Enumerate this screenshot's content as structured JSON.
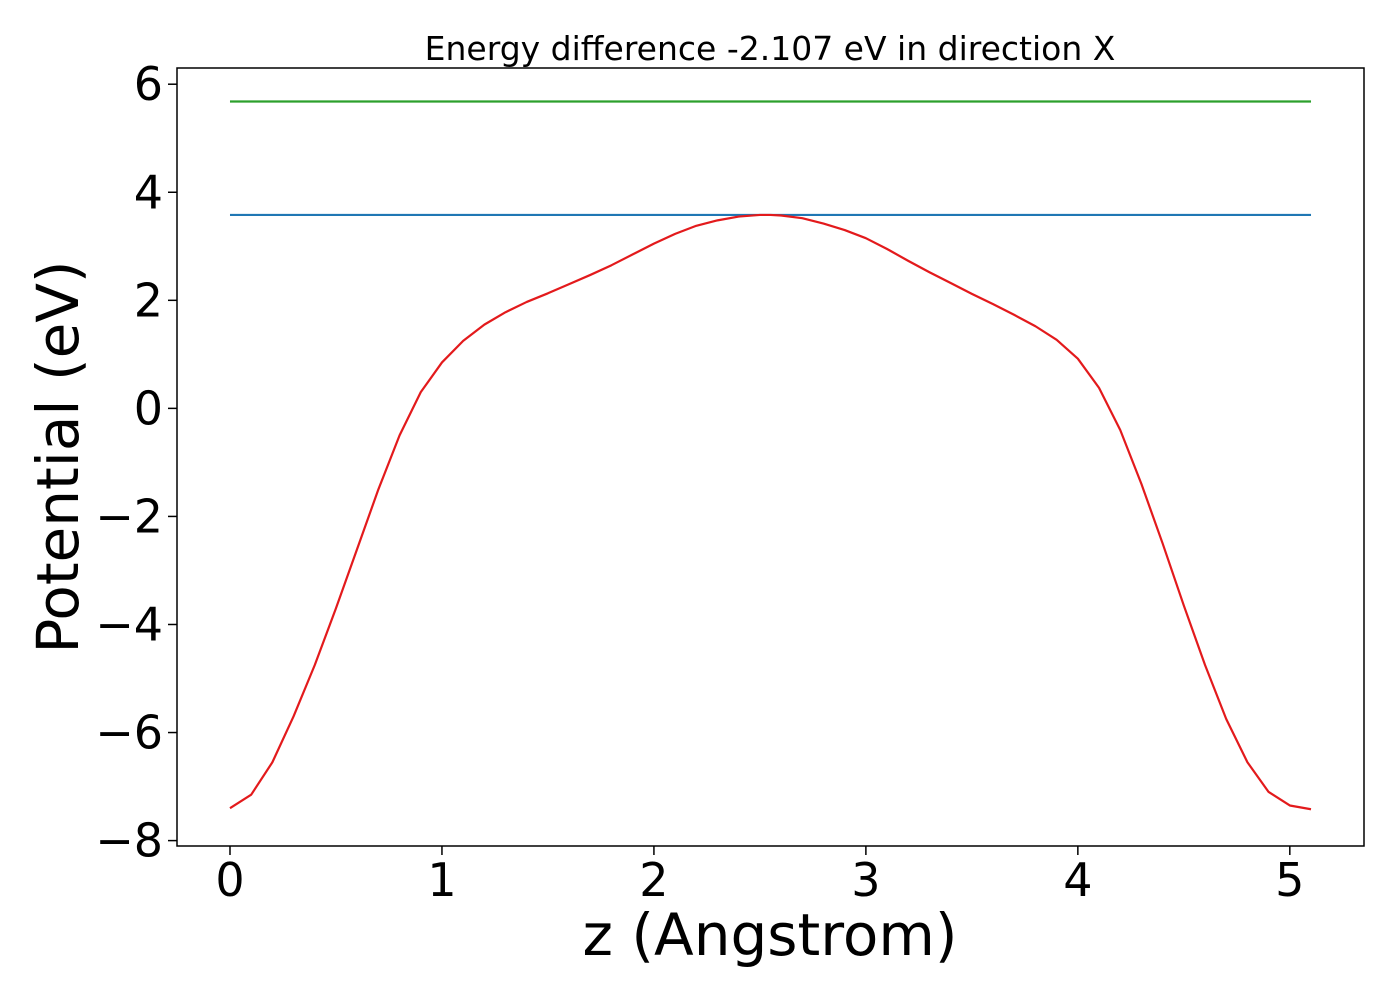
{
  "chart_data": {
    "type": "line",
    "title": "Energy difference -2.107 eV in direction X",
    "xlabel": "z (Angstrom)",
    "ylabel": "Potential (eV)",
    "xlim": [
      -0.25,
      5.35
    ],
    "ylim": [
      -8.1,
      6.3
    ],
    "xticks": [
      0,
      1,
      2,
      3,
      4,
      5
    ],
    "xtick_labels": [
      "0",
      "1",
      "2",
      "3",
      "4",
      "5"
    ],
    "yticks": [
      -8,
      -6,
      -4,
      -2,
      0,
      2,
      4,
      6
    ],
    "ytick_labels": [
      "−8",
      "−6",
      "−4",
      "−2",
      "0",
      "2",
      "4",
      "6"
    ],
    "grid": false,
    "series": [
      {
        "color": "#2ca02c",
        "x": [
          0,
          5.1
        ],
        "y": [
          5.68,
          5.68
        ]
      },
      {
        "color": "#1f77b4",
        "x": [
          0,
          5.1
        ],
        "y": [
          3.58,
          3.58
        ]
      },
      {
        "color": "#e31a1c",
        "x": [
          0,
          0.1,
          0.2,
          0.3,
          0.4,
          0.5,
          0.6,
          0.7,
          0.8,
          0.9,
          1.0,
          1.1,
          1.2,
          1.3,
          1.4,
          1.5,
          1.6,
          1.7,
          1.8,
          1.9,
          2.0,
          2.1,
          2.2,
          2.3,
          2.4,
          2.5,
          2.55,
          2.6,
          2.7,
          2.8,
          2.9,
          3.0,
          3.1,
          3.2,
          3.3,
          3.4,
          3.5,
          3.6,
          3.7,
          3.8,
          3.9,
          4.0,
          4.1,
          4.2,
          4.3,
          4.4,
          4.5,
          4.6,
          4.7,
          4.8,
          4.9,
          5.0,
          5.1
        ],
        "y": [
          -7.4,
          -7.15,
          -6.55,
          -5.7,
          -4.75,
          -3.7,
          -2.6,
          -1.5,
          -0.5,
          0.3,
          0.85,
          1.25,
          1.55,
          1.78,
          1.97,
          2.13,
          2.3,
          2.47,
          2.65,
          2.85,
          3.05,
          3.23,
          3.38,
          3.48,
          3.55,
          3.58,
          3.58,
          3.57,
          3.52,
          3.42,
          3.3,
          3.15,
          2.95,
          2.73,
          2.52,
          2.32,
          2.12,
          1.93,
          1.73,
          1.52,
          1.27,
          0.92,
          0.38,
          -0.4,
          -1.4,
          -2.5,
          -3.65,
          -4.75,
          -5.75,
          -6.55,
          -7.1,
          -7.35,
          -7.42
        ]
      }
    ]
  }
}
